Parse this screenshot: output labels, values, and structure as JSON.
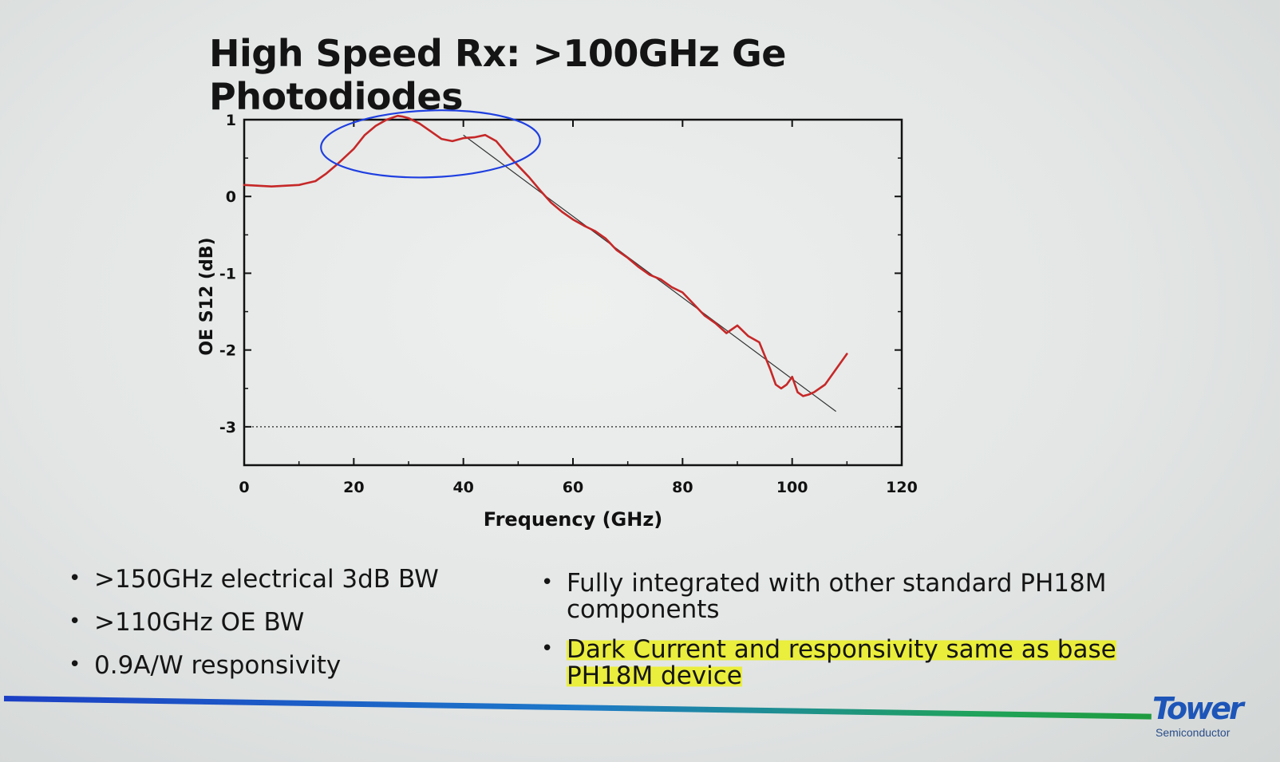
{
  "slide": {
    "title": "High Speed Rx: >100GHz Ge Photodiodes",
    "bullets_left": [
      ">150GHz electrical 3dB BW",
      ">110GHz OE BW",
      "0.9A/W responsivity"
    ],
    "bullets_right": [
      {
        "text": "Fully integrated with other standard PH18M components",
        "highlight": false
      },
      {
        "text": "Dark Current and responsivity same as base PH18M device",
        "highlight": true
      }
    ],
    "highlight_color": "#ecf01e",
    "bullet_symbol": "•"
  },
  "logo": {
    "name": "Tower",
    "subtitle": "Semiconductor",
    "color": "#1d55b8"
  },
  "colors": {
    "curve": "#c62828",
    "fit_line": "#333333",
    "annotation_circle": "#1f3fe0",
    "bar_start": "#1c3fc4",
    "bar_end": "#1f9b3f"
  },
  "chart_data": {
    "type": "line",
    "title": "",
    "xlabel": "Frequency (GHz)",
    "ylabel": "OE S12 (dB)",
    "xlim": [
      0,
      120
    ],
    "ylim": [
      -3.5,
      1
    ],
    "xticks": [
      0,
      20,
      40,
      60,
      80,
      100,
      120
    ],
    "yticks": [
      1,
      0,
      -1,
      -2,
      -3
    ],
    "grid": false,
    "reference_line": {
      "y": -3,
      "style": "dotted"
    },
    "series": [
      {
        "name": "",
        "color": "#c62828",
        "x": [
          0,
          5,
          10,
          13,
          15,
          17,
          20,
          22,
          24,
          26,
          28,
          29,
          30,
          32,
          34,
          36,
          38,
          40,
          42,
          44,
          46,
          48,
          50,
          52,
          54,
          56,
          58,
          60,
          62,
          64,
          66,
          68,
          70,
          72,
          74,
          76,
          78,
          80,
          82,
          84,
          86,
          88,
          90,
          92,
          94,
          96,
          97,
          98,
          99,
          100,
          101,
          102,
          103,
          104,
          106,
          108,
          110
        ],
        "y": [
          0.15,
          0.13,
          0.15,
          0.2,
          0.3,
          0.42,
          0.62,
          0.8,
          0.92,
          1.0,
          1.05,
          1.04,
          1.02,
          0.95,
          0.85,
          0.75,
          0.72,
          0.76,
          0.77,
          0.8,
          0.72,
          0.55,
          0.4,
          0.25,
          0.08,
          -0.08,
          -0.2,
          -0.3,
          -0.38,
          -0.45,
          -0.55,
          -0.7,
          -0.8,
          -0.92,
          -1.02,
          -1.08,
          -1.18,
          -1.25,
          -1.4,
          -1.55,
          -1.65,
          -1.78,
          -1.68,
          -1.82,
          -1.9,
          -2.25,
          -2.45,
          -2.5,
          -2.45,
          -2.35,
          -2.55,
          -2.6,
          -2.58,
          -2.55,
          -2.45,
          -2.25,
          -2.05
        ]
      }
    ],
    "fit_line": {
      "x": [
        40,
        108
      ],
      "y": [
        0.8,
        -2.8
      ]
    },
    "annotation": {
      "type": "ellipse",
      "x_range": [
        14,
        54
      ],
      "y_range": [
        0.25,
        1.12
      ]
    }
  }
}
